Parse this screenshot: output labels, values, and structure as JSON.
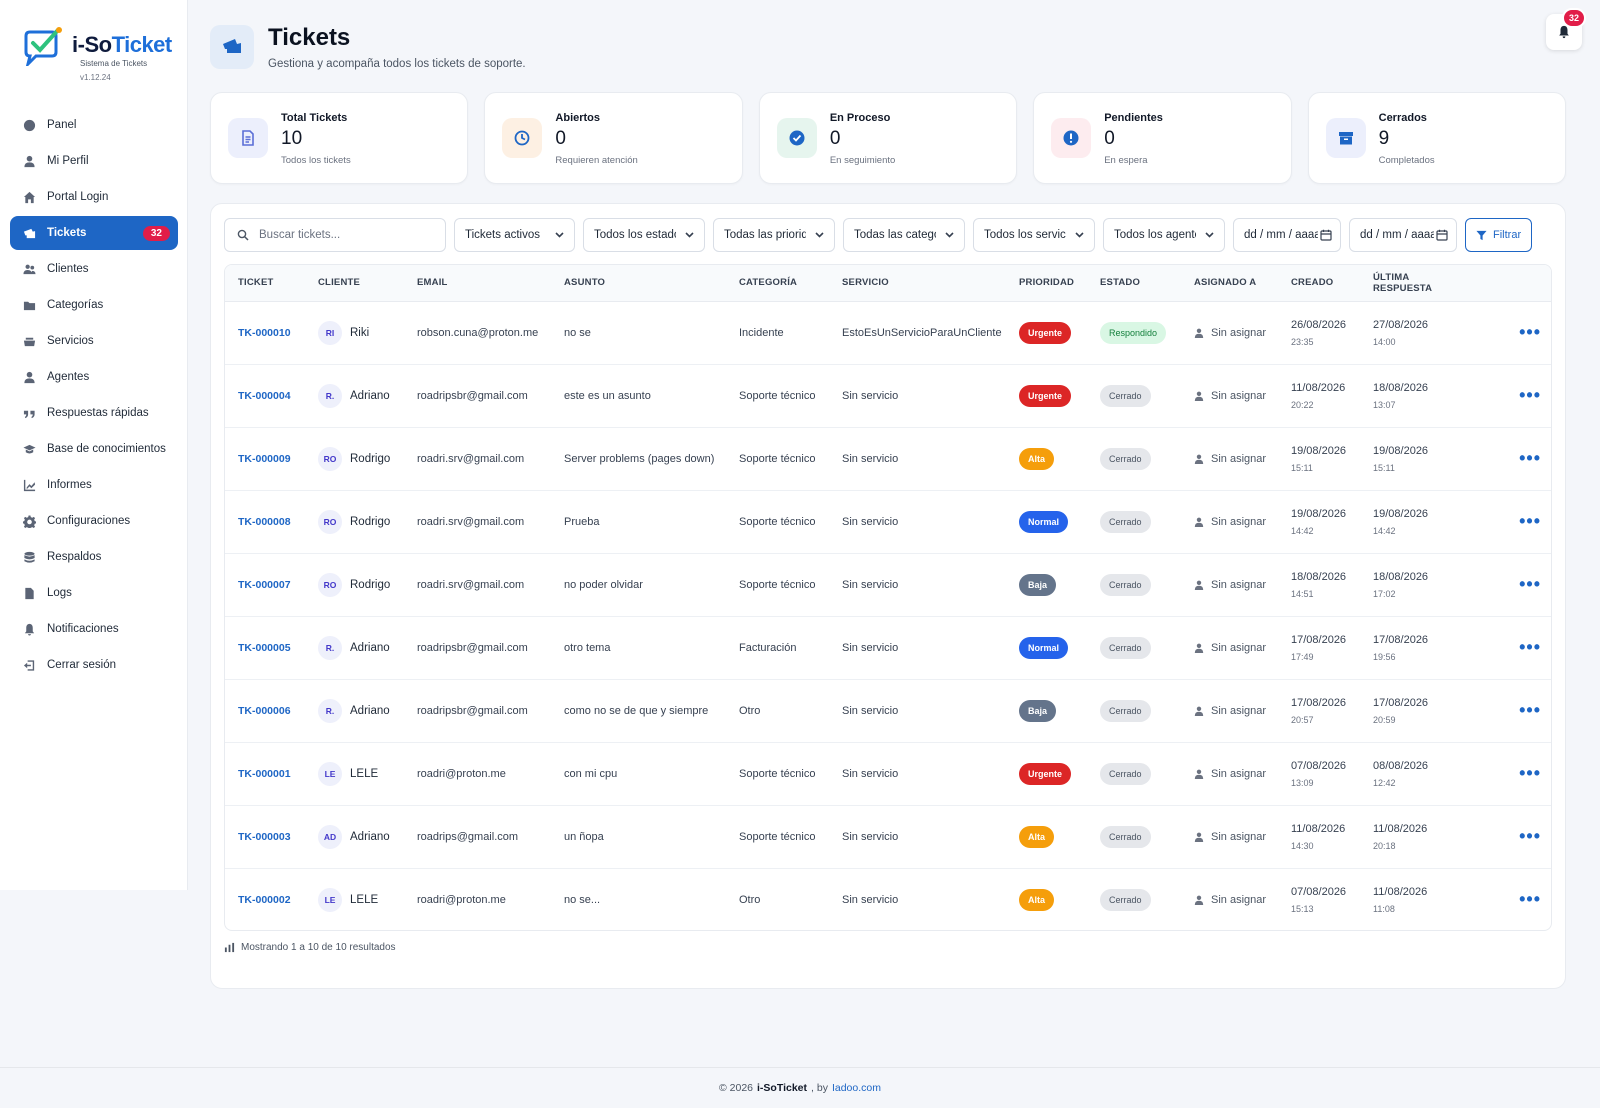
{
  "brand": {
    "name_a": "i-So",
    "name_b": "Ticket",
    "subtitle": "Sistema de Tickets",
    "version": "v1.12.24"
  },
  "sidebar": {
    "items": [
      {
        "label": "Panel",
        "icon": "dashboard-icon"
      },
      {
        "label": "Mi Perfil",
        "icon": "user-icon"
      },
      {
        "label": "Portal Login",
        "icon": "home-icon"
      },
      {
        "label": "Tickets",
        "icon": "tickets-icon",
        "badge": "32",
        "active": true
      },
      {
        "label": "Clientes",
        "icon": "clients-icon"
      },
      {
        "label": "Categorías",
        "icon": "folder-icon"
      },
      {
        "label": "Servicios",
        "icon": "services-icon"
      },
      {
        "label": "Agentes",
        "icon": "agent-icon"
      },
      {
        "label": "Respuestas rápidas",
        "icon": "quote-icon"
      },
      {
        "label": "Base de conocimientos",
        "icon": "graduation-icon"
      },
      {
        "label": "Informes",
        "icon": "chart-icon"
      },
      {
        "label": "Configuraciones",
        "icon": "gear-icon"
      },
      {
        "label": "Respaldos",
        "icon": "database-icon"
      },
      {
        "label": "Logs",
        "icon": "file-icon"
      },
      {
        "label": "Notificaciones",
        "icon": "bell-icon"
      },
      {
        "label": "Cerrar sesión",
        "icon": "logout-icon"
      }
    ]
  },
  "header": {
    "title": "Tickets",
    "subtitle": "Gestiona y acompaña todos los tickets de soporte.",
    "notification_count": "32"
  },
  "stats": [
    {
      "label": "Total Tickets",
      "value": "10",
      "hint": "Todos los tickets",
      "color": "#5b6fd6",
      "bg": "#eceffc"
    },
    {
      "label": "Abiertos",
      "value": "0",
      "hint": "Requieren atención",
      "color": "#1e66c5",
      "bg": "#fdf0e3"
    },
    {
      "label": "En Proceso",
      "value": "0",
      "hint": "En seguimiento",
      "color": "#1e66c5",
      "bg": "#e6f5ee"
    },
    {
      "label": "Pendientes",
      "value": "0",
      "hint": "En espera",
      "color": "#1e66c5",
      "bg": "#fdecef"
    },
    {
      "label": "Cerrados",
      "value": "9",
      "hint": "Completados",
      "color": "#1e66c5",
      "bg": "#eceffc"
    }
  ],
  "filters": {
    "search_placeholder": "Buscar tickets...",
    "selects": [
      {
        "value": "Tickets activos",
        "width": 121
      },
      {
        "value": "Todos los estados",
        "width": 122
      },
      {
        "value": "Todas las prioridades",
        "width": 122
      },
      {
        "value": "Todas las categorías",
        "width": 122
      },
      {
        "value": "Todos los servicios",
        "width": 122
      },
      {
        "value": "Todos los agentes",
        "width": 122
      }
    ],
    "date_from": "dd / mm / aaaa",
    "date_to": "dd / mm / aaaa",
    "filter_label": "Filtrar"
  },
  "table": {
    "headers": [
      "TICKET",
      "CLIENTE",
      "EMAIL",
      "ASUNTO",
      "CATEGORÍA",
      "SERVICIO",
      "PRIORIDAD",
      "ESTADO",
      "ASIGNADO A",
      "CREADO",
      "ÚLTIMA RESPUESTA",
      ""
    ],
    "rows": [
      {
        "id": "TK-000010",
        "initials": "RI",
        "client": "Riki",
        "email": "robson.cuna@proton.me",
        "subject": "no se",
        "category": "Incidente",
        "service": "EstoEsUnServicioParaUnCliente",
        "priority": "Urgente",
        "status": "Respondido",
        "assigned": "Sin asignar",
        "created_date": "26/08/2026",
        "created_time": "23:35",
        "last_date": "27/08/2026",
        "last_time": "14:00"
      },
      {
        "id": "TK-000004",
        "initials": "R.",
        "client": "Adriano",
        "email": "roadripsbr@gmail.com",
        "subject": "este es un asunto",
        "category": "Soporte técnico",
        "service": "Sin servicio",
        "priority": "Urgente",
        "status": "Cerrado",
        "assigned": "Sin asignar",
        "created_date": "11/08/2026",
        "created_time": "20:22",
        "last_date": "18/08/2026",
        "last_time": "13:07"
      },
      {
        "id": "TK-000009",
        "initials": "RO",
        "client": "Rodrigo",
        "email": "roadri.srv@gmail.com",
        "subject": "Server problems (pages down)",
        "category": "Soporte técnico",
        "service": "Sin servicio",
        "priority": "Alta",
        "status": "Cerrado",
        "assigned": "Sin asignar",
        "created_date": "19/08/2026",
        "created_time": "15:11",
        "last_date": "19/08/2026",
        "last_time": "15:11"
      },
      {
        "id": "TK-000008",
        "initials": "RO",
        "client": "Rodrigo",
        "email": "roadri.srv@gmail.com",
        "subject": "Prueba",
        "category": "Soporte técnico",
        "service": "Sin servicio",
        "priority": "Normal",
        "status": "Cerrado",
        "assigned": "Sin asignar",
        "created_date": "19/08/2026",
        "created_time": "14:42",
        "last_date": "19/08/2026",
        "last_time": "14:42"
      },
      {
        "id": "TK-000007",
        "initials": "RO",
        "client": "Rodrigo",
        "email": "roadri.srv@gmail.com",
        "subject": "no poder olvidar",
        "category": "Soporte técnico",
        "service": "Sin servicio",
        "priority": "Baja",
        "status": "Cerrado",
        "assigned": "Sin asignar",
        "created_date": "18/08/2026",
        "created_time": "14:51",
        "last_date": "18/08/2026",
        "last_time": "17:02"
      },
      {
        "id": "TK-000005",
        "initials": "R.",
        "client": "Adriano",
        "email": "roadripsbr@gmail.com",
        "subject": "otro tema",
        "category": "Facturación",
        "service": "Sin servicio",
        "priority": "Normal",
        "status": "Cerrado",
        "assigned": "Sin asignar",
        "created_date": "17/08/2026",
        "created_time": "17:49",
        "last_date": "17/08/2026",
        "last_time": "19:56"
      },
      {
        "id": "TK-000006",
        "initials": "R.",
        "client": "Adriano",
        "email": "roadripsbr@gmail.com",
        "subject": "como no se de que y siempre",
        "category": "Otro",
        "service": "Sin servicio",
        "priority": "Baja",
        "status": "Cerrado",
        "assigned": "Sin asignar",
        "created_date": "17/08/2026",
        "created_time": "20:57",
        "last_date": "17/08/2026",
        "last_time": "20:59"
      },
      {
        "id": "TK-000001",
        "initials": "LE",
        "client": "LELE",
        "email": "roadri@proton.me",
        "subject": "con mi cpu",
        "category": "Soporte técnico",
        "service": "Sin servicio",
        "priority": "Urgente",
        "status": "Cerrado",
        "assigned": "Sin asignar",
        "created_date": "07/08/2026",
        "created_time": "13:09",
        "last_date": "08/08/2026",
        "last_time": "12:42"
      },
      {
        "id": "TK-000003",
        "initials": "AD",
        "client": "Adriano",
        "email": "roadrips@gmail.com",
        "subject": "un ñopa",
        "category": "Soporte técnico",
        "service": "Sin servicio",
        "priority": "Alta",
        "status": "Cerrado",
        "assigned": "Sin asignar",
        "created_date": "11/08/2026",
        "created_time": "14:30",
        "last_date": "11/08/2026",
        "last_time": "20:18"
      },
      {
        "id": "TK-000002",
        "initials": "LE",
        "client": "LELE",
        "email": "roadri@proton.me",
        "subject": "no se...",
        "category": "Otro",
        "service": "Sin servicio",
        "priority": "Alta",
        "status": "Cerrado",
        "assigned": "Sin asignar",
        "created_date": "07/08/2026",
        "created_time": "15:13",
        "last_date": "11/08/2026",
        "last_time": "11:08"
      }
    ],
    "more_label": "•••"
  },
  "showing": "Mostrando 1 a 10 de 10 resultados",
  "footer": {
    "prefix": "© 2026",
    "brand": "i-SoTicket",
    "by": ", by",
    "link": "Iadoo.com"
  },
  "colors": {
    "accent": "#1e66c5",
    "urgente": "#dc2626",
    "alta": "#f59e0b",
    "normal": "#2563eb",
    "baja": "#64748b"
  }
}
